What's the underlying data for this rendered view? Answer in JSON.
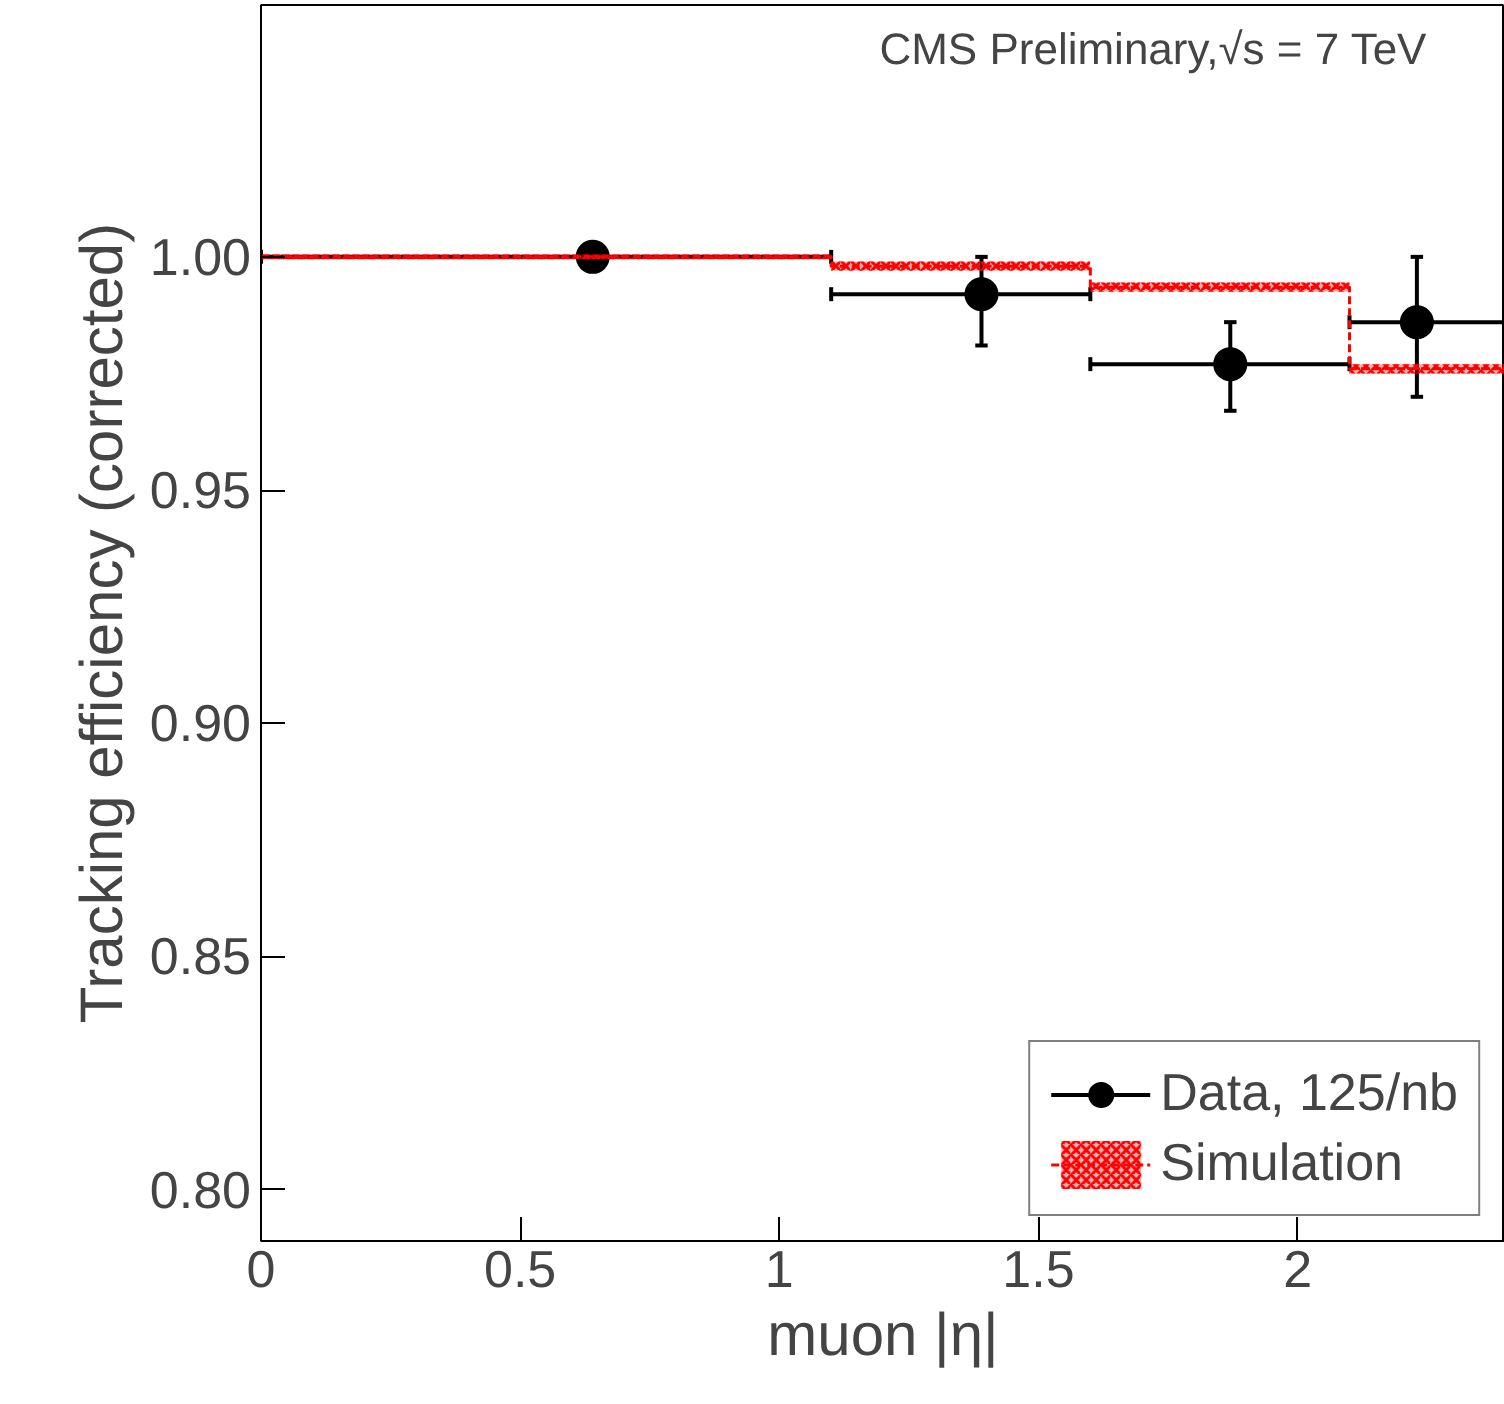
{
  "chart_data": {
    "type": "scatter",
    "annotations": [
      "CMS Preliminary,√s = 7 TeV"
    ],
    "xlabel": "muon |η|",
    "ylabel": "Tracking efficiency (corrected)",
    "xlim": [
      0,
      2.4
    ],
    "ylim": [
      0.789,
      1.054
    ],
    "xticks": [
      0,
      0.5,
      1,
      1.5,
      2
    ],
    "yticks": [
      {
        "value": 0.8,
        "label": "0.80"
      },
      {
        "value": 0.85,
        "label": "0.85"
      },
      {
        "value": 0.9,
        "label": "0.90"
      },
      {
        "value": 0.95,
        "label": "0.95"
      },
      {
        "value": 1.0,
        "label": "1.00"
      }
    ],
    "grid": false,
    "legend": "bottom right",
    "series": [
      {
        "name": "Data, 125/nb",
        "marker": "circle",
        "color": "#000000",
        "x": [
          0.64,
          1.39,
          1.87,
          2.23
        ],
        "values": [
          1.0,
          0.992,
          0.977,
          0.986
        ],
        "errors": [
          null,
          [
            0.981,
            1.0
          ],
          [
            0.967,
            0.986
          ],
          [
            0.97,
            1.0
          ]
        ],
        "xerrors": [
          [
            0,
            1.1
          ],
          [
            1.1,
            1.6
          ],
          [
            1.6,
            2.1
          ],
          [
            2.1,
            2.4
          ]
        ]
      },
      {
        "name": "Simulation",
        "type": "step",
        "line_style": "dashed",
        "color": "#ff0000",
        "x": [
          0,
          1.1,
          1.6,
          2.1,
          2.4
        ],
        "values": [
          1.0,
          0.998,
          0.9935,
          0.976,
          0.976
        ],
        "lower": [
          0.9995,
          0.997,
          0.9925,
          0.975,
          0.975
        ],
        "upper": [
          1.0005,
          0.999,
          0.9945,
          0.977,
          0.977
        ]
      }
    ]
  }
}
